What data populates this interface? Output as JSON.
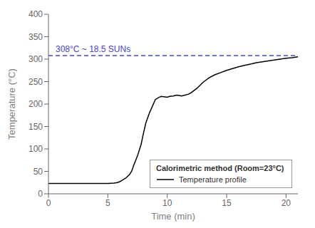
{
  "chart_data": {
    "type": "line",
    "title": "",
    "xlabel": "Time (min)",
    "ylabel": "Temperature (°C)",
    "x": [
      0,
      0.5,
      1.0,
      1.5,
      2.0,
      2.5,
      3.0,
      3.5,
      4.0,
      4.5,
      5.0,
      5.5,
      5.8,
      6.0,
      6.2,
      6.5,
      6.8,
      7.0,
      7.2,
      7.5,
      7.8,
      8.0,
      8.2,
      8.5,
      8.8,
      9.0,
      9.3,
      9.5,
      9.8,
      10.0,
      10.2,
      10.5,
      10.8,
      11.0,
      11.2,
      11.5,
      11.8,
      12.0,
      12.5,
      13.0,
      13.5,
      14.0,
      14.5,
      15.0,
      15.5,
      16.0,
      16.5,
      17.0,
      17.5,
      18.0,
      18.5,
      19.0,
      19.5,
      20.0,
      20.5,
      21.0
    ],
    "series": [
      {
        "name": "Temperature profile",
        "color": "#000000",
        "line_style": "solid",
        "values": [
          23,
          23,
          23,
          23,
          23,
          23,
          23,
          23,
          23,
          23,
          23,
          24,
          25,
          27,
          30,
          35,
          42,
          50,
          65,
          85,
          110,
          135,
          158,
          180,
          198,
          210,
          215,
          217,
          216,
          215,
          217,
          218,
          220,
          219,
          218,
          220,
          222,
          225,
          235,
          248,
          258,
          265,
          270,
          275,
          279,
          283,
          286,
          289,
          292,
          294,
          296,
          298,
          300,
          302,
          303,
          305
        ]
      }
    ],
    "legend_title": "Calorimetric method (Room=23°C)",
    "legend": "lower right",
    "reference_lines": [
      {
        "y": 308,
        "label": "308°C ~ 18.5 SUNs",
        "color": "#4444cc",
        "line_style": "dashed"
      }
    ],
    "xlim": [
      0,
      21
    ],
    "ylim": [
      0,
      400
    ],
    "xticks": [
      0,
      5,
      10,
      15,
      20
    ],
    "yticks": [
      0,
      50,
      100,
      150,
      200,
      250,
      300,
      350,
      400
    ],
    "grid": false
  }
}
